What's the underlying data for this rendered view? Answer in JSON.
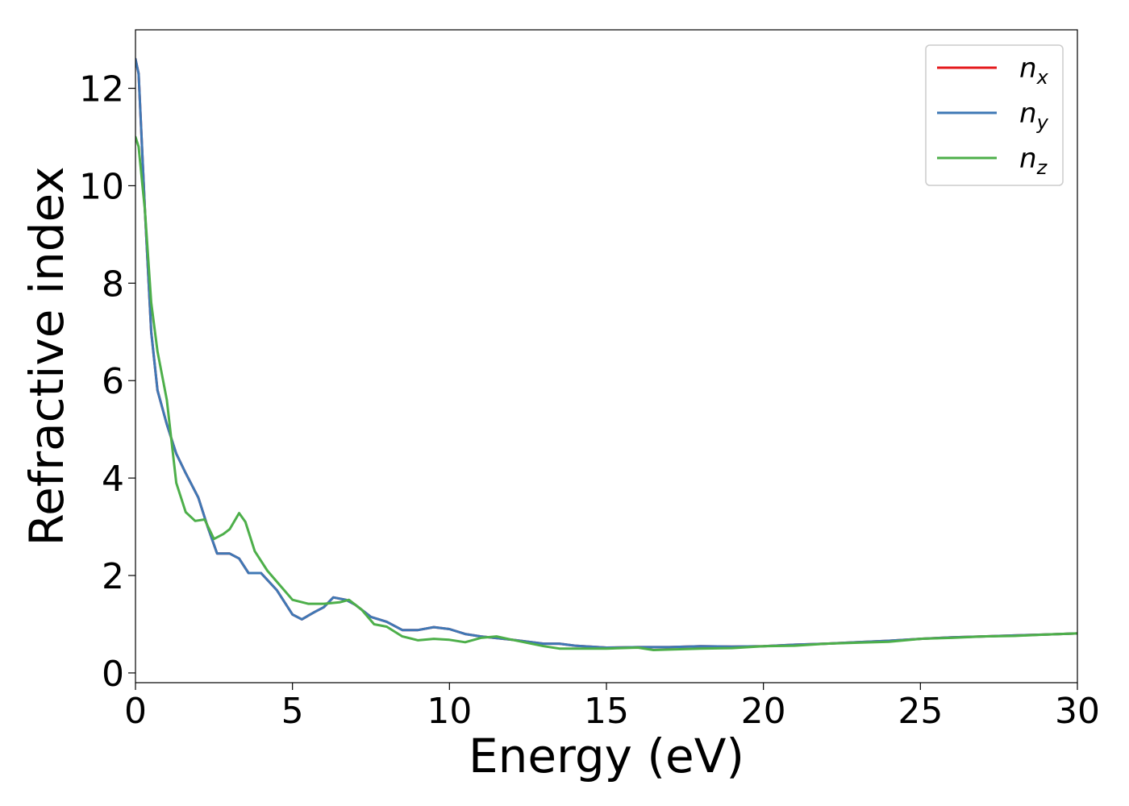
{
  "chart_data": {
    "type": "line",
    "title": "",
    "xlabel": "Energy (eV)",
    "ylabel": "Refractive index",
    "xlim": [
      0,
      30
    ],
    "ylim": [
      -0.2,
      13.2
    ],
    "xticks": [
      0,
      5,
      10,
      15,
      20,
      25,
      30
    ],
    "yticks": [
      0,
      2,
      4,
      6,
      8,
      10,
      12
    ],
    "grid": false,
    "legend_position": "top-right",
    "series": [
      {
        "name": "n",
        "subscript": "x",
        "color": "#e41a1c",
        "x": [
          0,
          0.1,
          0.3,
          0.5,
          0.7,
          1.0,
          1.3,
          1.6,
          2.0,
          2.3,
          2.6,
          3.0,
          3.3,
          3.6,
          4.0,
          4.5,
          5.0,
          5.3,
          5.7,
          6.0,
          6.3,
          6.7,
          7.0,
          7.5,
          8.0,
          8.5,
          9.0,
          9.5,
          10.0,
          10.5,
          11.0,
          12.0,
          13.0,
          13.5,
          14.0,
          15.0,
          16.0,
          17.0,
          18.0,
          19.0,
          20.0,
          21.0,
          22.0,
          23.0,
          24.0,
          25.0,
          26.0,
          27.0,
          28.0,
          29.0,
          30.0
        ],
        "y": [
          12.6,
          12.3,
          9.5,
          7.0,
          5.8,
          5.1,
          4.5,
          4.1,
          3.6,
          3.0,
          2.45,
          2.45,
          2.35,
          2.05,
          2.05,
          1.7,
          1.2,
          1.1,
          1.25,
          1.35,
          1.55,
          1.5,
          1.4,
          1.15,
          1.05,
          0.88,
          0.88,
          0.94,
          0.9,
          0.8,
          0.75,
          0.68,
          0.6,
          0.6,
          0.56,
          0.52,
          0.53,
          0.53,
          0.55,
          0.54,
          0.55,
          0.58,
          0.6,
          0.63,
          0.66,
          0.7,
          0.73,
          0.75,
          0.77,
          0.79,
          0.81
        ]
      },
      {
        "name": "n",
        "subscript": "y",
        "color": "#3f78b5",
        "x": [
          0,
          0.1,
          0.3,
          0.5,
          0.7,
          1.0,
          1.3,
          1.6,
          2.0,
          2.3,
          2.6,
          3.0,
          3.3,
          3.6,
          4.0,
          4.5,
          5.0,
          5.3,
          5.7,
          6.0,
          6.3,
          6.7,
          7.0,
          7.5,
          8.0,
          8.5,
          9.0,
          9.5,
          10.0,
          10.5,
          11.0,
          12.0,
          13.0,
          13.5,
          14.0,
          15.0,
          16.0,
          17.0,
          18.0,
          19.0,
          20.0,
          21.0,
          22.0,
          23.0,
          24.0,
          25.0,
          26.0,
          27.0,
          28.0,
          29.0,
          30.0
        ],
        "y": [
          12.6,
          12.3,
          9.5,
          7.0,
          5.8,
          5.1,
          4.5,
          4.1,
          3.6,
          3.0,
          2.45,
          2.45,
          2.35,
          2.05,
          2.05,
          1.7,
          1.2,
          1.1,
          1.25,
          1.35,
          1.55,
          1.5,
          1.4,
          1.15,
          1.05,
          0.88,
          0.88,
          0.94,
          0.9,
          0.8,
          0.75,
          0.68,
          0.6,
          0.6,
          0.56,
          0.52,
          0.53,
          0.53,
          0.55,
          0.54,
          0.55,
          0.58,
          0.6,
          0.63,
          0.66,
          0.7,
          0.73,
          0.75,
          0.77,
          0.79,
          0.81
        ]
      },
      {
        "name": "n",
        "subscript": "z",
        "color": "#4daf4a",
        "x": [
          0,
          0.1,
          0.3,
          0.5,
          0.7,
          1.0,
          1.3,
          1.6,
          1.9,
          2.2,
          2.5,
          2.8,
          3.0,
          3.3,
          3.5,
          3.8,
          4.2,
          4.6,
          5.0,
          5.5,
          6.0,
          6.5,
          6.8,
          7.2,
          7.6,
          8.0,
          8.5,
          9.0,
          9.5,
          10.0,
          10.5,
          11.0,
          11.5,
          12.0,
          13.0,
          13.5,
          14.0,
          15.0,
          16.0,
          16.5,
          17.0,
          18.0,
          19.0,
          20.0,
          21.0,
          22.0,
          23.0,
          24.0,
          25.0,
          26.0,
          27.0,
          28.0,
          29.0,
          30.0
        ],
        "y": [
          11.0,
          10.8,
          9.5,
          7.6,
          6.6,
          5.6,
          3.9,
          3.3,
          3.12,
          3.15,
          2.75,
          2.85,
          2.95,
          3.28,
          3.1,
          2.5,
          2.1,
          1.8,
          1.5,
          1.42,
          1.42,
          1.45,
          1.5,
          1.3,
          1.0,
          0.95,
          0.75,
          0.67,
          0.7,
          0.68,
          0.63,
          0.72,
          0.75,
          0.68,
          0.55,
          0.5,
          0.5,
          0.5,
          0.52,
          0.47,
          0.48,
          0.5,
          0.51,
          0.55,
          0.56,
          0.6,
          0.62,
          0.64,
          0.7,
          0.72,
          0.75,
          0.76,
          0.79,
          0.81
        ]
      }
    ]
  }
}
